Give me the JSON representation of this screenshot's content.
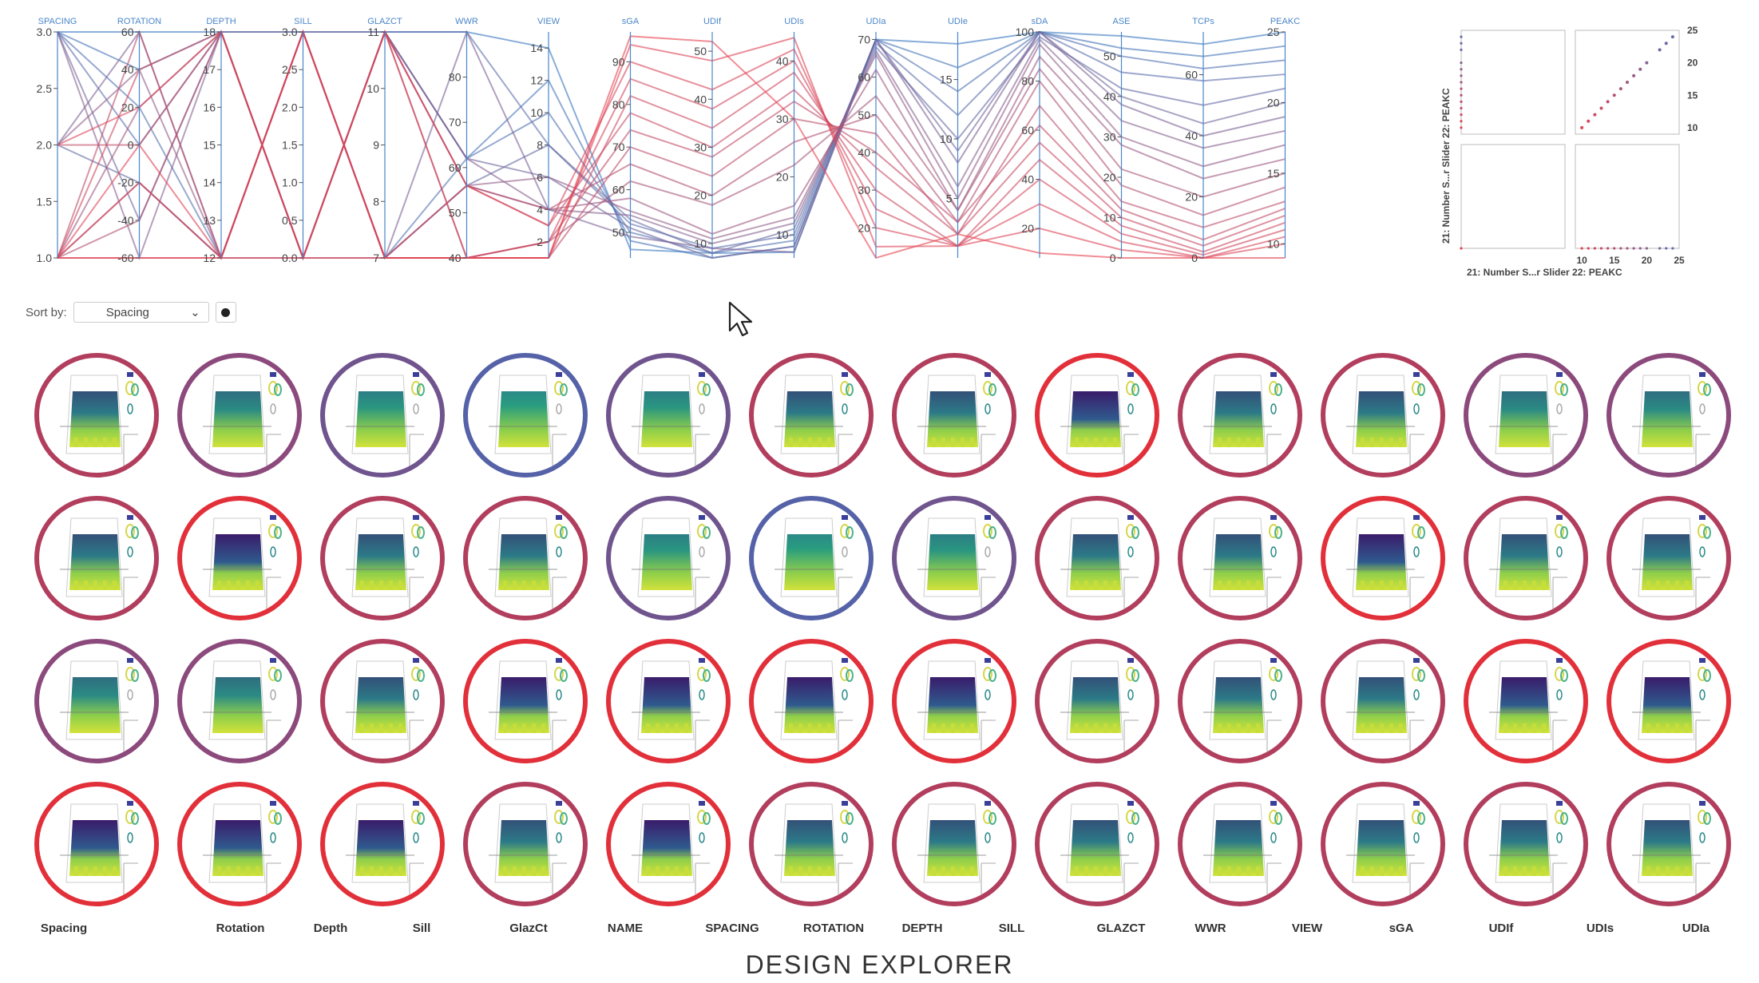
{
  "chart_data": [
    {
      "type": "parallel-coordinates",
      "axes": [
        {
          "name": "SPACING",
          "range": [
            1,
            3
          ],
          "ticks": [
            "1.0",
            "1.5",
            "2.0",
            "2.5",
            "3.0"
          ],
          "tickvals": [
            1,
            1.5,
            2,
            2.5,
            3
          ]
        },
        {
          "name": "ROTATION",
          "range": [
            -60,
            60
          ],
          "ticks": [
            "-60",
            "-40",
            "-20",
            "0",
            "20",
            "40",
            "60"
          ],
          "tickvals": [
            -60,
            -40,
            -20,
            0,
            20,
            40,
            60
          ]
        },
        {
          "name": "DEPTH",
          "range": [
            12,
            18
          ],
          "ticks": [
            "12",
            "13",
            "14",
            "15",
            "16",
            "17",
            "18"
          ],
          "tickvals": [
            12,
            13,
            14,
            15,
            16,
            17,
            18
          ]
        },
        {
          "name": "SILL",
          "range": [
            0,
            3
          ],
          "ticks": [
            "0.0",
            "0.5",
            "1.0",
            "1.5",
            "2.0",
            "2.5",
            "3.0"
          ],
          "tickvals": [
            0,
            0.5,
            1,
            1.5,
            2,
            2.5,
            3
          ]
        },
        {
          "name": "GLAZCT",
          "range": [
            7,
            11
          ],
          "ticks": [
            "7",
            "8",
            "9",
            "10",
            "11"
          ],
          "tickvals": [
            7,
            8,
            9,
            10,
            11
          ]
        },
        {
          "name": "WWR",
          "range": [
            40,
            90
          ],
          "ticks": [
            "40",
            "50",
            "60",
            "70",
            "80"
          ],
          "tickvals": [
            40,
            50,
            60,
            70,
            80
          ]
        },
        {
          "name": "VIEW",
          "range": [
            1,
            15
          ],
          "ticks": [
            "2",
            "4",
            "6",
            "8",
            "10",
            "12",
            "14"
          ],
          "tickvals": [
            2,
            4,
            6,
            8,
            10,
            12,
            14
          ]
        },
        {
          "name": "sGA",
          "range": [
            44,
            97
          ],
          "ticks": [
            "50",
            "60",
            "70",
            "80",
            "90"
          ],
          "tickvals": [
            50,
            60,
            70,
            80,
            90
          ]
        },
        {
          "name": "UDIf",
          "range": [
            7,
            54
          ],
          "ticks": [
            "10",
            "20",
            "30",
            "40",
            "50"
          ],
          "tickvals": [
            10,
            20,
            30,
            40,
            50
          ]
        },
        {
          "name": "UDIs",
          "range": [
            6,
            45
          ],
          "ticks": [
            "10",
            "20",
            "30",
            "40"
          ],
          "tickvals": [
            10,
            20,
            30,
            40
          ]
        },
        {
          "name": "UDIa",
          "range": [
            12,
            72
          ],
          "ticks": [
            "20",
            "30",
            "40",
            "50",
            "60",
            "70"
          ],
          "tickvals": [
            20,
            30,
            40,
            50,
            60,
            70
          ]
        },
        {
          "name": "UDIe",
          "range": [
            0,
            19
          ],
          "ticks": [
            "5",
            "10",
            "15"
          ],
          "tickvals": [
            5,
            10,
            15
          ]
        },
        {
          "name": "sDA",
          "range": [
            8,
            100
          ],
          "ticks": [
            "20",
            "40",
            "60",
            "80",
            "100"
          ],
          "tickvals": [
            20,
            40,
            60,
            80,
            100
          ]
        },
        {
          "name": "ASE",
          "range": [
            0,
            56
          ],
          "ticks": [
            "0",
            "10",
            "20",
            "30",
            "40",
            "50"
          ],
          "tickvals": [
            0,
            10,
            20,
            30,
            40,
            50
          ]
        },
        {
          "name": "TCPs",
          "range": [
            0,
            74
          ],
          "ticks": [
            "0",
            "20",
            "40",
            "60"
          ],
          "tickvals": [
            0,
            20,
            40,
            60
          ]
        },
        {
          "name": "PEAKC",
          "range": [
            9,
            25
          ],
          "ticks": [
            "10",
            "15",
            "20",
            "25"
          ],
          "tickvals": [
            10,
            15,
            20,
            25
          ]
        }
      ],
      "color_by": "PEAKC",
      "colors": {
        "low": "#e8414f",
        "high": "#3b78c0"
      },
      "records": [
        [
          3,
          60,
          18,
          3,
          11,
          90,
          14,
          46,
          8,
          7,
          70,
          18,
          100,
          55,
          70,
          25
        ],
        [
          3,
          40,
          18,
          0,
          11,
          62,
          12,
          48,
          7,
          8,
          70,
          16,
          100,
          52,
          66,
          24
        ],
        [
          3,
          20,
          12,
          3,
          7,
          62,
          10,
          50,
          8,
          9,
          70,
          14,
          100,
          50,
          62,
          23
        ],
        [
          3,
          0,
          18,
          0,
          11,
          90,
          8,
          52,
          9,
          10,
          69,
          12,
          100,
          46,
          58,
          22
        ],
        [
          2,
          -20,
          12,
          3,
          7,
          56,
          8,
          53,
          8,
          11,
          68,
          10,
          98,
          42,
          50,
          21
        ],
        [
          3,
          -40,
          18,
          3,
          11,
          62,
          6,
          51,
          7,
          8,
          70,
          9,
          100,
          40,
          44,
          20
        ],
        [
          2,
          60,
          12,
          0,
          7,
          90,
          4,
          49,
          9,
          7,
          70,
          8,
          100,
          38,
          40,
          19
        ],
        [
          3,
          -60,
          18,
          0,
          11,
          62,
          4,
          54,
          10,
          12,
          67,
          6,
          97,
          34,
          36,
          18
        ],
        [
          2,
          40,
          12,
          3,
          7,
          56,
          6,
          55,
          11,
          13,
          66,
          5,
          95,
          30,
          30,
          17
        ],
        [
          1,
          20,
          18,
          0,
          11,
          56,
          4,
          58,
          12,
          15,
          62,
          4,
          90,
          28,
          26,
          16
        ],
        [
          1,
          -20,
          12,
          3,
          7,
          40,
          2,
          62,
          18,
          22,
          55,
          4,
          85,
          22,
          20,
          15
        ],
        [
          1,
          -40,
          18,
          0,
          11,
          56,
          4,
          66,
          20,
          26,
          50,
          3,
          80,
          18,
          14,
          14
        ],
        [
          1,
          60,
          12,
          3,
          7,
          40,
          1,
          70,
          24,
          30,
          45,
          2,
          70,
          14,
          10,
          13
        ],
        [
          2,
          0,
          18,
          0,
          11,
          40,
          2,
          74,
          28,
          33,
          40,
          3,
          62,
          12,
          6,
          12.5
        ],
        [
          1,
          -60,
          12,
          3,
          7,
          56,
          3,
          78,
          30,
          35,
          36,
          2,
          55,
          10,
          4,
          12
        ],
        [
          1,
          40,
          18,
          0,
          11,
          40,
          1,
          82,
          34,
          38,
          30,
          1,
          48,
          8,
          2,
          11.5
        ],
        [
          1,
          -20,
          12,
          3,
          7,
          40,
          2,
          86,
          38,
          40,
          25,
          1,
          40,
          6,
          1,
          11
        ],
        [
          2,
          20,
          18,
          0,
          11,
          56,
          3,
          90,
          42,
          42,
          20,
          1,
          30,
          4,
          0,
          10.5
        ],
        [
          1,
          0,
          12,
          3,
          7,
          40,
          1,
          94,
          48,
          44,
          15,
          1,
          20,
          2,
          0,
          10
        ],
        [
          1,
          -60,
          12,
          0,
          7,
          40,
          1,
          96,
          52,
          30,
          12,
          2,
          10,
          0,
          0,
          9
        ]
      ]
    },
    {
      "type": "scatter-matrix",
      "xlabels": [
        "21: Number S...r Slider",
        "22: PEAKC"
      ],
      "ylabel": "21: Number S...r Slider   22: PEAKC",
      "ticks": [
        "10",
        "15",
        "20",
        "25"
      ],
      "tickvals": [
        10,
        15,
        20,
        25
      ],
      "range": [
        9,
        25
      ],
      "points": [
        10,
        11,
        12,
        13,
        14,
        15,
        16,
        17,
        18,
        19,
        20,
        22,
        23,
        24
      ],
      "colors": {
        "low": "#e8414f",
        "high": "#5a6fb0"
      }
    }
  ],
  "sort": {
    "label": "Sort by:",
    "value": "Spacing"
  },
  "ring_palette": {
    "r": "#e2303a",
    "rp": "#b23e5e",
    "p": "#8c4a7c",
    "pb": "#70548e",
    "b": "#5662a8"
  },
  "designs": [
    [
      "rp",
      "p",
      "pb",
      "b",
      "pb",
      "rp",
      "rp",
      "r",
      "rp",
      "rp",
      "p",
      "p"
    ],
    [
      "rp",
      "r",
      "rp",
      "rp",
      "pb",
      "b",
      "pb",
      "rp",
      "rp",
      "r",
      "rp",
      "rp"
    ],
    [
      "p",
      "p",
      "rp",
      "r",
      "r",
      "r",
      "r",
      "rp",
      "rp",
      "rp",
      "r",
      "r"
    ],
    [
      "r",
      "r",
      "r",
      "rp",
      "r",
      "rp",
      "rp",
      "rp",
      "rp",
      "rp",
      "rp",
      "rp"
    ]
  ],
  "bottom_labels": [
    "Spacing",
    "Rotation",
    "Depth",
    "Sill",
    "GlazCt",
    "NAME",
    "SPACING",
    "ROTATION",
    "DEPTH",
    "SILL",
    "GLAZCT",
    "WWR",
    "VIEW",
    "sGA",
    "UDIf",
    "UDIs",
    "UDIa"
  ],
  "title": "DESIGN EXPLORER"
}
